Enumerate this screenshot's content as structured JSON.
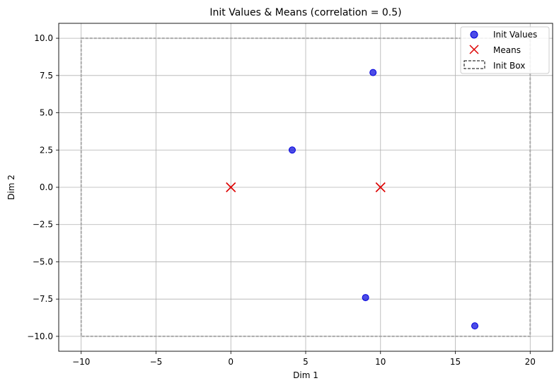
{
  "chart_data": {
    "type": "scatter",
    "title": "Init Values & Means (correlation = 0.5)",
    "xlabel": "Dim 1",
    "ylabel": "Dim 2",
    "xlim": [
      -11.5,
      21.5
    ],
    "ylim": [
      -11,
      11
    ],
    "xticks": [
      -10,
      -5,
      0,
      5,
      10,
      15,
      20
    ],
    "xtick_labels": [
      "−10",
      "−5",
      "0",
      "5",
      "10",
      "15",
      "20"
    ],
    "yticks": [
      -10.0,
      -7.5,
      -5.0,
      -2.5,
      0.0,
      2.5,
      5.0,
      7.5,
      10.0
    ],
    "ytick_labels": [
      "−10.0",
      "−7.5",
      "−5.0",
      "−2.5",
      "0.0",
      "2.5",
      "5.0",
      "7.5",
      "10.0"
    ],
    "grid": true,
    "legend_position": "top-right",
    "series": [
      {
        "name": "Init Values",
        "marker": "circle",
        "color": "#0000dd",
        "points": [
          [
            9.5,
            7.7
          ],
          [
            4.1,
            2.5
          ],
          [
            9.0,
            -7.4
          ],
          [
            16.3,
            -9.3
          ]
        ]
      },
      {
        "name": "Means",
        "marker": "x",
        "color": "#dd0000",
        "points": [
          [
            0,
            0
          ],
          [
            10,
            0
          ]
        ]
      }
    ],
    "box": {
      "name": "Init Box",
      "x_range": [
        -10,
        20
      ],
      "y_range": [
        -10,
        10
      ],
      "color": "#aaaaaa"
    }
  }
}
